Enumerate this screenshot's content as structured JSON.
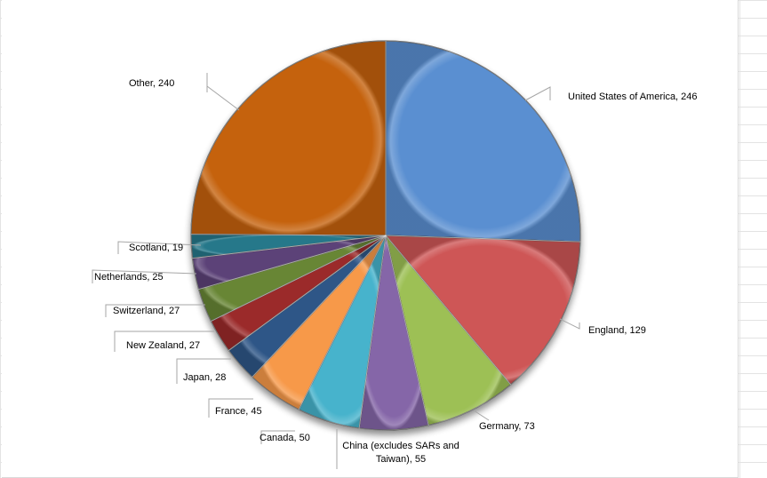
{
  "chart_data": {
    "type": "pie",
    "title": "",
    "slices": [
      {
        "label": "United States of America",
        "value": 246,
        "display": "United States of America, 246",
        "color": "#5a8fd1"
      },
      {
        "label": "England",
        "value": 129,
        "display": "England, 129",
        "color": "#ce5656"
      },
      {
        "label": "Germany",
        "value": 73,
        "display": "Germany, 73",
        "color": "#9dc055"
      },
      {
        "label": "China (excludes SARs and Taiwan)",
        "value": 55,
        "display": [
          "China (excludes SARs and",
          "Taiwan), 55"
        ],
        "color": "#8566a8"
      },
      {
        "label": "Canada",
        "value": 50,
        "display": "Canada, 50",
        "color": "#46b3cc"
      },
      {
        "label": "France",
        "value": 45,
        "display": "France, 45",
        "color": "#f7994a"
      },
      {
        "label": "Japan",
        "value": 28,
        "display": "Japan, 28",
        "color": "#2e5787"
      },
      {
        "label": "New Zealand",
        "value": 27,
        "display": "New Zealand, 27",
        "color": "#9b2c2c"
      },
      {
        "label": "Switzerland",
        "value": 27,
        "display": "Switzerland, 27",
        "color": "#688635"
      },
      {
        "label": "Netherlands",
        "value": 25,
        "display": "Netherlands, 25",
        "color": "#5b4378"
      },
      {
        "label": "Scotland",
        "value": 19,
        "display": "Scotland, 19",
        "color": "#27788a"
      },
      {
        "label": "Other",
        "value": 240,
        "display": "Other, 240",
        "color": "#c5620c"
      }
    ],
    "start_angle": "12 o'clock",
    "direction": "clockwise",
    "legend": "none",
    "data_labels": "category and value, outside with leader lines"
  }
}
